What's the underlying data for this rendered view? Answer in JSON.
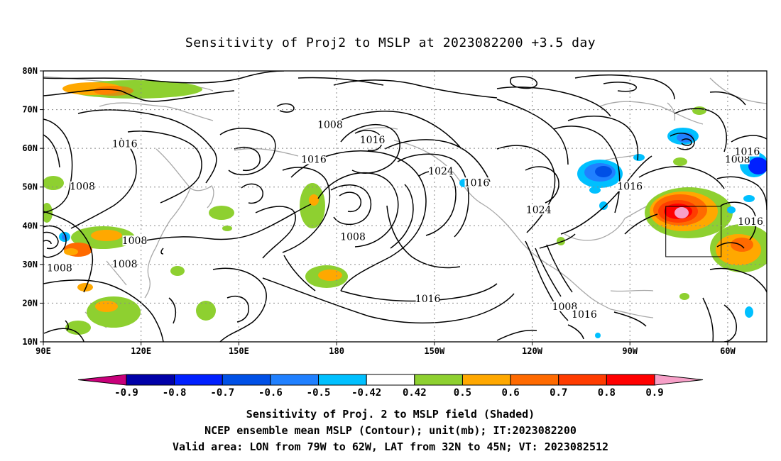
{
  "title": "Sensitivity of Proj2 to MSLP at 2023082200 +3.5 day",
  "axes": {
    "lat_labels": [
      "80N",
      "70N",
      "60N",
      "50N",
      "40N",
      "30N",
      "20N",
      "10N"
    ],
    "lon_labels": [
      "90E",
      "120E",
      "150E",
      "180",
      "150W",
      "120W",
      "90W",
      "60W"
    ],
    "lon_range": [
      90,
      312
    ],
    "lat_range": [
      10,
      80
    ],
    "grid": "dotted"
  },
  "contour_labels": [
    {
      "text": "1008",
      "lon": 178,
      "lat": 66
    },
    {
      "text": "1016",
      "lon": 115,
      "lat": 61
    },
    {
      "text": "1016",
      "lon": 173,
      "lat": 57
    },
    {
      "text": "1016",
      "lon": 191,
      "lat": 62
    },
    {
      "text": "1024",
      "lon": 212,
      "lat": 54
    },
    {
      "text": "1016",
      "lon": 223,
      "lat": 51
    },
    {
      "text": "1024",
      "lon": 242,
      "lat": 44
    },
    {
      "text": "1016",
      "lon": 270,
      "lat": 50
    },
    {
      "text": "1008",
      "lon": 303,
      "lat": 57
    },
    {
      "text": "1016",
      "lon": 306,
      "lat": 59
    },
    {
      "text": "1016",
      "lon": 307,
      "lat": 41
    },
    {
      "text": "1008",
      "lon": 102,
      "lat": 50
    },
    {
      "text": "1008",
      "lon": 118,
      "lat": 36
    },
    {
      "text": "1008",
      "lon": 95,
      "lat": 29
    },
    {
      "text": "1008",
      "lon": 115,
      "lat": 30
    },
    {
      "text": "1008",
      "lon": 185,
      "lat": 37
    },
    {
      "text": "1016",
      "lon": 208,
      "lat": 21
    },
    {
      "text": "1008",
      "lon": 250,
      "lat": 19
    },
    {
      "text": "1016",
      "lon": 256,
      "lat": 17
    }
  ],
  "valid_box": {
    "lon": [
      281,
      298
    ],
    "lat": [
      32,
      45
    ]
  },
  "colorbar": {
    "colors": [
      "#c8007a",
      "#0000a8",
      "#0020ff",
      "#0050e6",
      "#2080ff",
      "#00c0ff",
      "#ffffff",
      "#8ed030",
      "#ffa800",
      "#ff6a00",
      "#ff3c00",
      "#ff0000",
      "#f7a0c8"
    ],
    "labels": [
      "-0.9",
      "-0.8",
      "-0.7",
      "-0.6",
      "-0.5",
      "-0.42",
      "0.42",
      "0.5",
      "0.6",
      "0.7",
      "0.8",
      "0.9"
    ]
  },
  "captions": [
    "Sensitivity of Proj. 2 to MSLP field (Shaded)",
    "NCEP ensemble mean MSLP (Contour); unit(mb); IT:2023082200",
    "Valid area: LON from 79W to 62W, LAT from 32N to 45N; VT: 2023082512"
  ]
}
